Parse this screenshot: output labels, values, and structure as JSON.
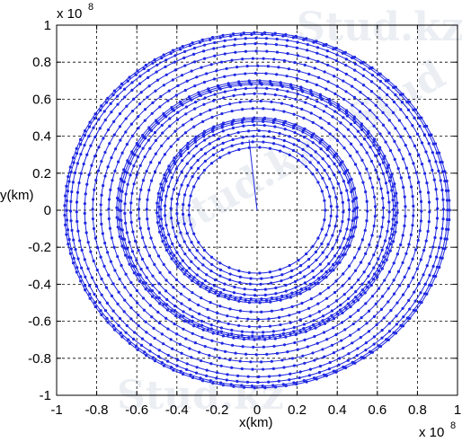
{
  "chart_data": {
    "type": "line",
    "xlabel": "x(km)",
    "ylabel": "y(km)",
    "x_multiplier": "x 10",
    "y_multiplier": "x 10",
    "exponent": "8",
    "xlim": [
      -1,
      1
    ],
    "ylim": [
      -1,
      1
    ],
    "x_ticks": [
      "-1",
      "-0.8",
      "-0.6",
      "-0.4",
      "-0.2",
      "0",
      "0.2",
      "0.4",
      "0.6",
      "0.8",
      "1"
    ],
    "y_ticks": [
      "1",
      "0.8",
      "0.6",
      "0.4",
      "0.2",
      "0",
      "-0.2",
      "-0.4",
      "-0.6",
      "-0.8",
      "-1"
    ],
    "grid": true,
    "line_color": "#1f28e0",
    "marker": "dot",
    "series": [
      {
        "orbit_radii": [
          0.34,
          0.37,
          0.4,
          0.43,
          0.46,
          0.48,
          0.49,
          0.5,
          0.55,
          0.59,
          0.63,
          0.66,
          0.68,
          0.69,
          0.7,
          0.74,
          0.78,
          0.82,
          0.86,
          0.9,
          0.93,
          0.95,
          0.96
        ],
        "start_point": [
          0.0,
          0.0
        ],
        "first_orbit_point": [
          -0.04,
          0.38
        ]
      }
    ]
  },
  "watermark": {
    "text_top": "Stud.kz",
    "text_mid": "Stud.kz - Stud",
    "text_bottom": "Stud.kz"
  }
}
